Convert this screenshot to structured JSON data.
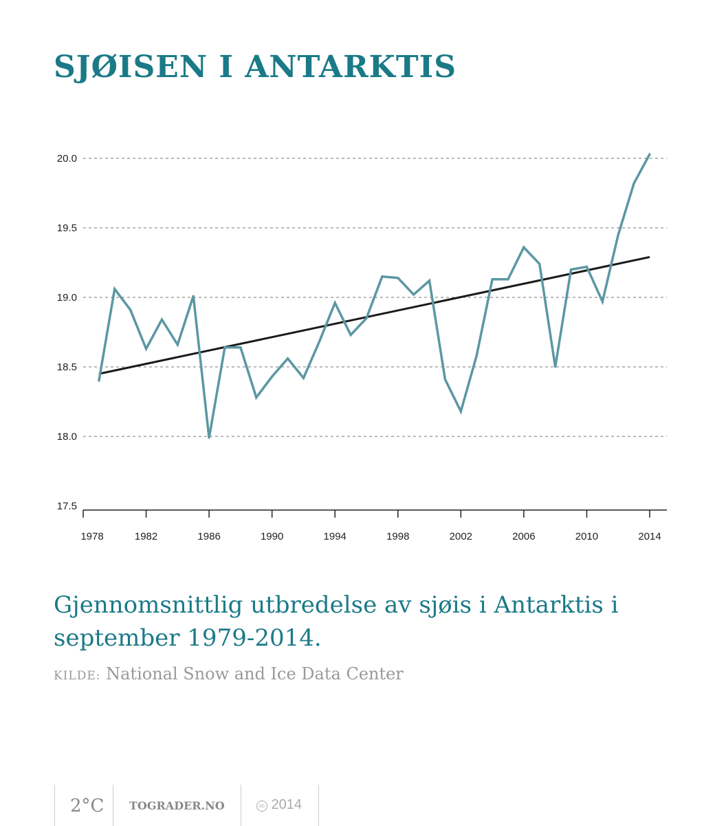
{
  "title": "SJØISEN I ANTARKTIS",
  "subtitle": "Gjennomsnittlig utbredelse av sjøis i Antarktis i september 1979-2014.",
  "source_label": "KILDE:",
  "source": "National Snow and Ice Data Center",
  "footer": {
    "logo": "2°C",
    "site": "TOGRADER.NO",
    "license_icon": "cc-icon",
    "year": "2014"
  },
  "colors": {
    "title": "#1a7a87",
    "series": "#5b97a3",
    "trend": "#1a1a1a"
  },
  "chart_data": {
    "type": "line",
    "title": "SJØISEN I ANTARKTIS",
    "xlim": [
      1978,
      2014
    ],
    "ylim": [
      17.5,
      20.0
    ],
    "x_ticks": [
      1978,
      1982,
      1986,
      1990,
      1994,
      1998,
      2002,
      2006,
      2010,
      2014
    ],
    "y_ticks": [
      "17.5",
      "18.0",
      "18.5",
      "19.0",
      "19.5",
      "20.0"
    ],
    "grid": "horizontal dashed",
    "x": [
      1979,
      1980,
      1981,
      1982,
      1983,
      1984,
      1985,
      1986,
      1987,
      1988,
      1989,
      1990,
      1991,
      1992,
      1993,
      1994,
      1995,
      1996,
      1997,
      1998,
      1999,
      2000,
      2001,
      2002,
      2003,
      2004,
      2005,
      2006,
      2007,
      2008,
      2009,
      2010,
      2011,
      2012,
      2013,
      2014
    ],
    "series": [
      {
        "values": [
          18.4,
          19.06,
          18.91,
          18.63,
          18.84,
          18.66,
          19.01,
          17.99,
          18.64,
          18.64,
          18.28,
          18.43,
          18.56,
          18.42,
          18.68,
          18.96,
          18.73,
          18.85,
          19.15,
          19.14,
          19.02,
          19.12,
          18.41,
          18.18,
          18.58,
          19.13,
          19.13,
          19.36,
          19.24,
          18.5,
          19.2,
          19.22,
          18.97,
          19.45,
          19.82,
          20.03
        ]
      },
      {
        "type": "trend",
        "x": [
          1979,
          2014
        ],
        "values": [
          18.45,
          19.29
        ]
      }
    ]
  }
}
